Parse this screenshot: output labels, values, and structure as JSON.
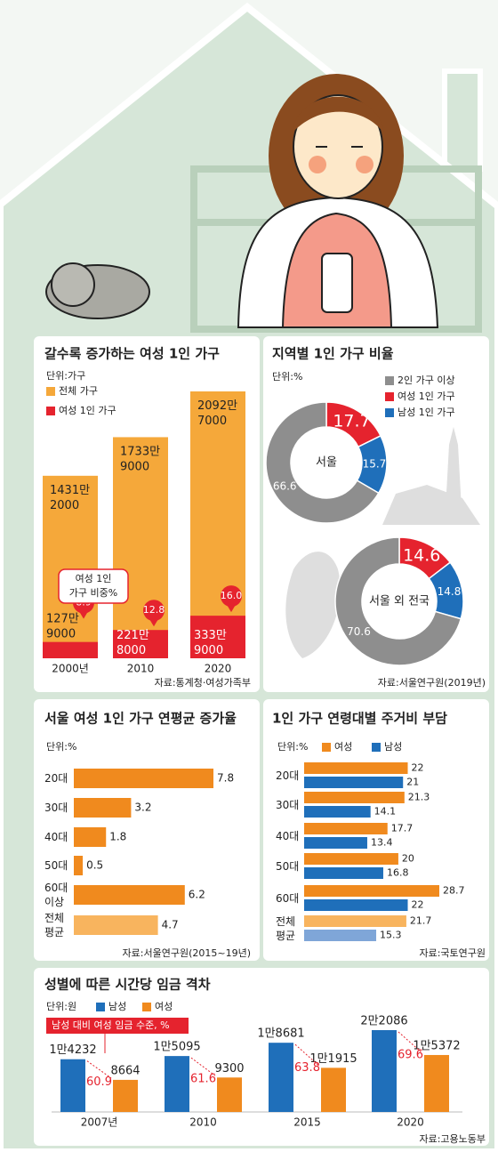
{
  "chart_data": [
    {
      "type": "bar",
      "overlay": true,
      "title": "갈수록 증가하는 여성 1인 가구",
      "unit": "단위:가구",
      "categories": [
        "2000년",
        "2010",
        "2020"
      ],
      "series": [
        {
          "name": "전체 가구",
          "color": "#f5a83a",
          "values": [
            14312000,
            17339000,
            20927000
          ],
          "value_labels": [
            "1431만 2000",
            "1733만 9000",
            "2092만 7000"
          ]
        },
        {
          "name": "여성 1인 가구",
          "color": "#e5232e",
          "values": [
            1279000,
            2218000,
            3339000
          ],
          "value_labels": [
            "127만 9000",
            "221만 8000",
            "333만 9000"
          ]
        }
      ],
      "share": {
        "name": "여성 1인 가구 비중%",
        "values": [
          8.9,
          12.8,
          16.0
        ],
        "value_labels": [
          "8.9",
          "12.8",
          "16.0"
        ]
      },
      "source": "자료:통계청·여성가족부"
    },
    {
      "type": "donut",
      "title": "지역별 1인 가구 비율",
      "unit": "단위:%",
      "categories": [
        "2인 가구 이상",
        "여성 1인 가구",
        "남성 1인 가구"
      ],
      "colors": [
        "#8e8e8e",
        "#e5232e",
        "#1f6fba"
      ],
      "series": [
        {
          "name": "서울",
          "values": [
            66.6,
            17.7,
            15.7
          ]
        },
        {
          "name": "서울 외 전국",
          "values": [
            70.6,
            14.6,
            14.8
          ]
        }
      ],
      "source": "자료:서울연구원(2019년)"
    },
    {
      "type": "barh",
      "title": "서울 여성 1인 가구 연평균 증가율",
      "unit": "단위:%",
      "categories": [
        "20대",
        "30대",
        "40대",
        "50대",
        "60대 이상",
        "전체 평균"
      ],
      "series": [
        {
          "values": [
            7.8,
            3.2,
            1.8,
            0.5,
            6.2,
            4.7
          ],
          "colors": [
            "#f08a1e",
            "#f08a1e",
            "#f08a1e",
            "#f08a1e",
            "#f08a1e",
            "#f8b45e"
          ]
        }
      ],
      "source": "자료:서울연구원(2015~19년)"
    },
    {
      "type": "barh",
      "title": "1인 가구 연령대별 주거비 부담",
      "unit": "단위:%",
      "categories": [
        "20대",
        "30대",
        "40대",
        "50대",
        "60대",
        "전체 평균"
      ],
      "series": [
        {
          "name": "여성",
          "color": "#f08a1e",
          "values": [
            22,
            21.3,
            17.7,
            20,
            28.7,
            21.7
          ],
          "colors": [
            "#f08a1e",
            "#f08a1e",
            "#f08a1e",
            "#f08a1e",
            "#f08a1e",
            "#f8b45e"
          ]
        },
        {
          "name": "남성",
          "color": "#1f6fba",
          "values": [
            21,
            14.1,
            13.4,
            16.8,
            22,
            15.3
          ],
          "colors": [
            "#1f6fba",
            "#1f6fba",
            "#1f6fba",
            "#1f6fba",
            "#1f6fba",
            "#7fa6d8"
          ]
        }
      ],
      "source": "자료:국토연구원"
    },
    {
      "type": "bar",
      "overlay": false,
      "title": "성별에 따른 시간당 임금 격차",
      "unit": "단위:원",
      "categories": [
        "2007년",
        "2010",
        "2015",
        "2020"
      ],
      "series": [
        {
          "name": "남성",
          "color": "#1f6fba",
          "values": [
            14232,
            15095,
            18681,
            22086
          ],
          "value_labels": [
            "1만4232",
            "1만5095",
            "1만8681",
            "2만2086"
          ]
        },
        {
          "name": "여성",
          "color": "#f08a1e",
          "values": [
            8664,
            9300,
            11915,
            15372
          ],
          "value_labels": [
            "8664",
            "9300",
            "1만1915",
            "1만5372"
          ]
        }
      ],
      "share": {
        "name": "남성 대비 여성 임금 수준, %",
        "values": [
          60.9,
          61.6,
          63.8,
          69.6
        ]
      },
      "source": "자료:고용노동부"
    }
  ]
}
